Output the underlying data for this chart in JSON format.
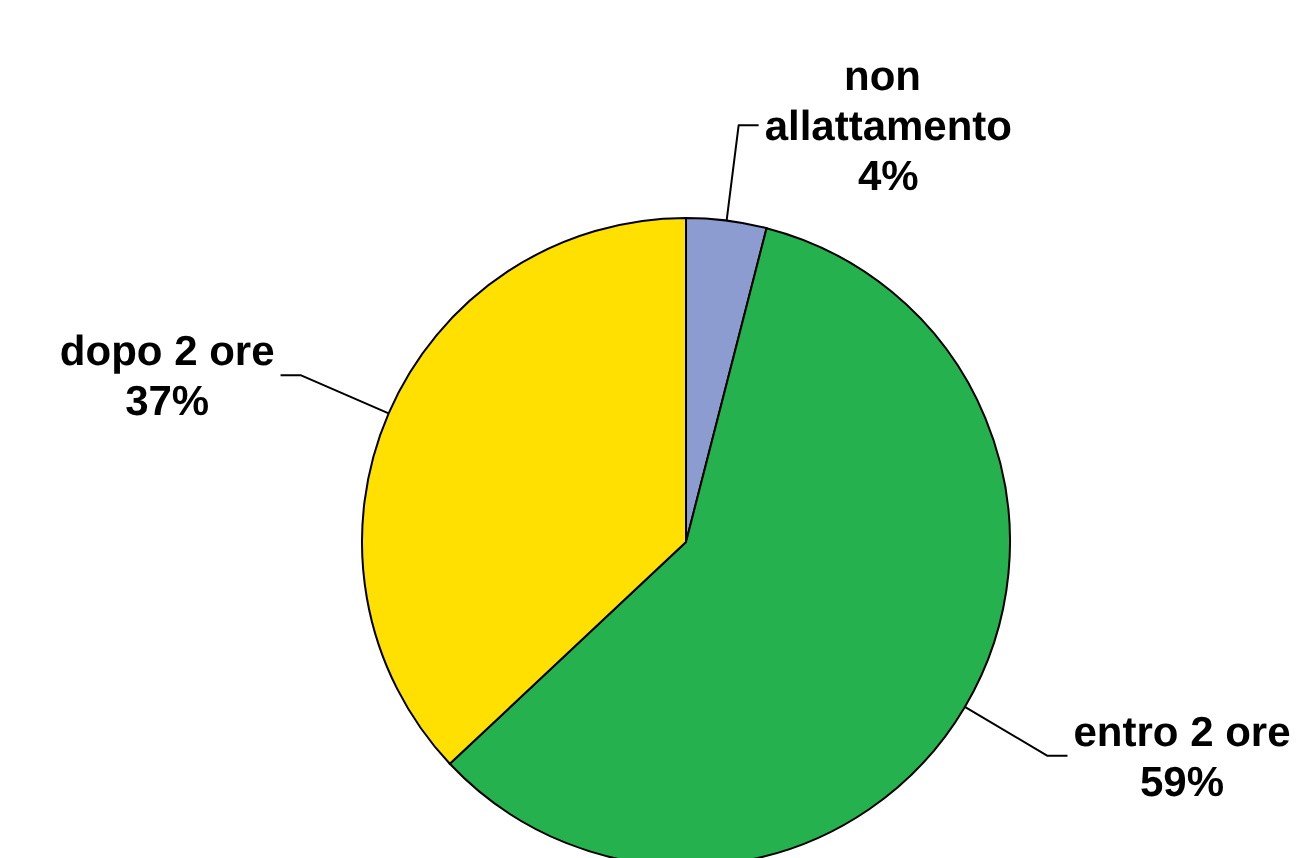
{
  "chart_data": {
    "type": "pie",
    "categories": [
      "non allattamento",
      "entro 2 ore",
      "dopo 2 ore"
    ],
    "values": [
      4,
      59,
      37
    ],
    "colors": [
      "#8c9bd0",
      "#25b14e",
      "#ffe000"
    ],
    "value_labels": [
      "4%",
      "59%",
      "37%"
    ]
  }
}
